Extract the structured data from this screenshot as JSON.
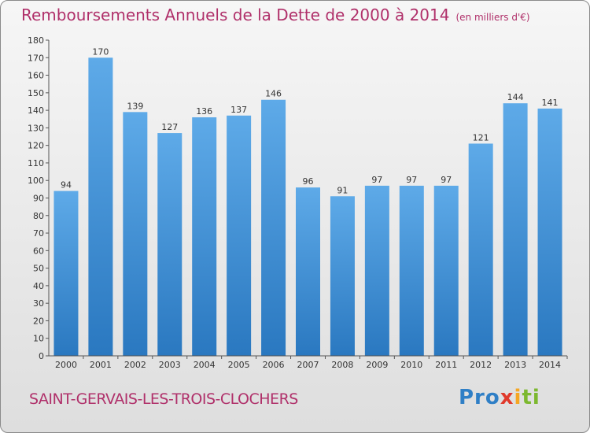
{
  "title": "Remboursements Annuels de la Dette de 2000 à 2014",
  "subtitle": "(en milliers d'€)",
  "commune": "SAINT-GERVAIS-LES-TROIS-CLOCHERS",
  "logo": [
    "Pro",
    "x",
    "i",
    "ti"
  ],
  "colors": {
    "bar": "#4f9fe0",
    "bar_dark": "#2a78c0",
    "title": "#b0306a"
  },
  "chart_data": {
    "type": "bar",
    "categories": [
      "2000",
      "2001",
      "2002",
      "2003",
      "2004",
      "2005",
      "2006",
      "2007",
      "2008",
      "2009",
      "2010",
      "2011",
      "2012",
      "2013",
      "2014"
    ],
    "values": [
      94,
      170,
      139,
      127,
      136,
      137,
      146,
      96,
      91,
      97,
      97,
      97,
      121,
      144,
      141
    ],
    "ylim": [
      0,
      180
    ],
    "yticks": [
      0,
      10,
      20,
      30,
      40,
      50,
      60,
      70,
      80,
      90,
      100,
      110,
      120,
      130,
      140,
      150,
      160,
      170,
      180
    ],
    "grid": false,
    "title": "Remboursements Annuels de la Dette de 2000 à 2014",
    "ylabel": "",
    "xlabel": ""
  }
}
